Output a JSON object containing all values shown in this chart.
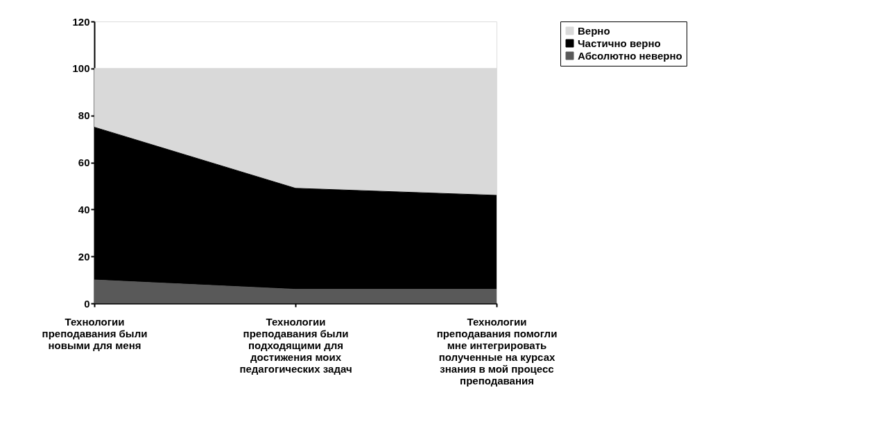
{
  "chart_data": {
    "type": "area",
    "stacked": true,
    "categories": [
      "Технологии преподавания были новыми для меня",
      "Технологии преподавания были подходящими для достижения моих педагогических задач",
      "Технологии преподавания помогли мне интегрировать полученные на курсах знания в мой процесс преподавания"
    ],
    "series": [
      {
        "name": "Абсолютно неверно",
        "color": "#595959",
        "values": [
          10,
          6,
          6
        ]
      },
      {
        "name": "Частично верно",
        "color": "#000000",
        "values": [
          65,
          43,
          40
        ]
      },
      {
        "name": "Верно",
        "color": "#d9d9d9",
        "values": [
          25,
          51,
          54
        ]
      }
    ],
    "ylim": [
      0,
      120
    ],
    "yticks": [
      0,
      20,
      40,
      60,
      80,
      100,
      120
    ],
    "grid": false,
    "legend": "right"
  }
}
